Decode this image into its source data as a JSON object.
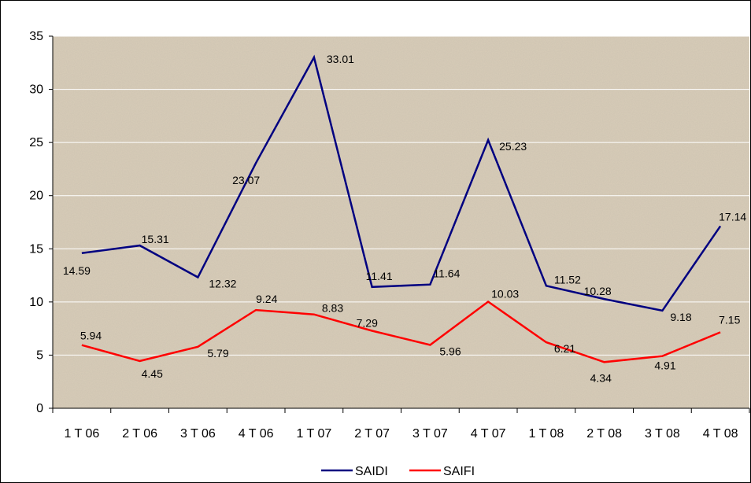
{
  "chart_data": {
    "type": "line",
    "categories": [
      "1 T 06",
      "2 T 06",
      "3 T 06",
      "4 T 06",
      "1 T 07",
      "2 T 07",
      "3 T 07",
      "4 T 07",
      "1 T 08",
      "2 T 08",
      "3 T 08",
      "4 T 08"
    ],
    "series": [
      {
        "name": "SAIDI",
        "color": "#000080",
        "values": [
          14.59,
          15.31,
          12.32,
          23.07,
          33.01,
          11.41,
          11.64,
          25.23,
          11.52,
          10.28,
          9.18,
          17.14
        ],
        "labels": [
          "14.59",
          "15.31",
          "12.32",
          "23.07",
          "33.01",
          "11.41",
          "11.64",
          "25.23",
          "11.52",
          "10.28",
          "9.18",
          "17.14"
        ]
      },
      {
        "name": "SAIFI",
        "color": "#ff0000",
        "values": [
          5.94,
          4.45,
          5.79,
          9.24,
          8.83,
          7.29,
          5.96,
          10.03,
          6.21,
          4.34,
          4.91,
          7.15
        ],
        "labels": [
          "5.94",
          "4.45",
          "5.79",
          "9.24",
          "8.83",
          "7.29",
          "5.96",
          "10.03",
          "6.21",
          "4.34",
          "4.91",
          "7.15"
        ]
      }
    ],
    "title": "",
    "xlabel": "",
    "ylabel": "",
    "ylim": [
      0,
      35
    ],
    "yticks": [
      "0",
      "5",
      "10",
      "15",
      "20",
      "25",
      "30",
      "35"
    ],
    "grid": true,
    "legend_position": "bottom",
    "background": "textured tan"
  }
}
